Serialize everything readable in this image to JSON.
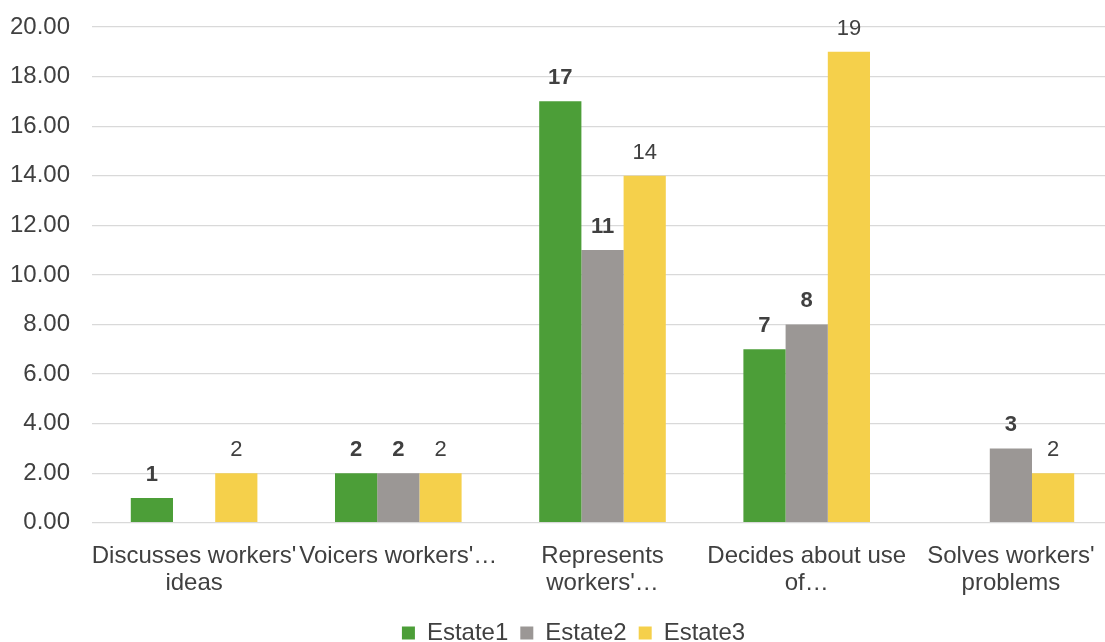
{
  "chart_data": {
    "type": "bar",
    "categories": [
      "Discusses workers' ideas",
      "Voicers workers'…",
      "Represents workers'…",
      "Decides about use of…",
      "Solves workers' problems"
    ],
    "series": [
      {
        "name": "Estate1",
        "color": "#4c9e38",
        "values": [
          1,
          2,
          17,
          7,
          null
        ]
      },
      {
        "name": "Estate2",
        "color": "#9b9795",
        "values": [
          null,
          2,
          11,
          8,
          3
        ]
      },
      {
        "name": "Estate3",
        "color": "#f5d04b",
        "values": [
          2,
          2,
          14,
          19,
          2
        ]
      }
    ],
    "ylim": [
      0,
      20
    ],
    "yticks": [
      {
        "value": 0,
        "label": "0.00"
      },
      {
        "value": 2,
        "label": "2.00"
      },
      {
        "value": 4,
        "label": "4.00"
      },
      {
        "value": 6,
        "label": "6.00"
      },
      {
        "value": 8,
        "label": "8.00"
      },
      {
        "value": 10,
        "label": "10.00"
      },
      {
        "value": 12,
        "label": "12.00"
      },
      {
        "value": 14,
        "label": "14.00"
      },
      {
        "value": 16,
        "label": "16.00"
      },
      {
        "value": 18,
        "label": "18.00"
      },
      {
        "value": 20,
        "label": "20.00"
      }
    ],
    "grid": "y",
    "legend": "bottom",
    "data_labels": true
  }
}
